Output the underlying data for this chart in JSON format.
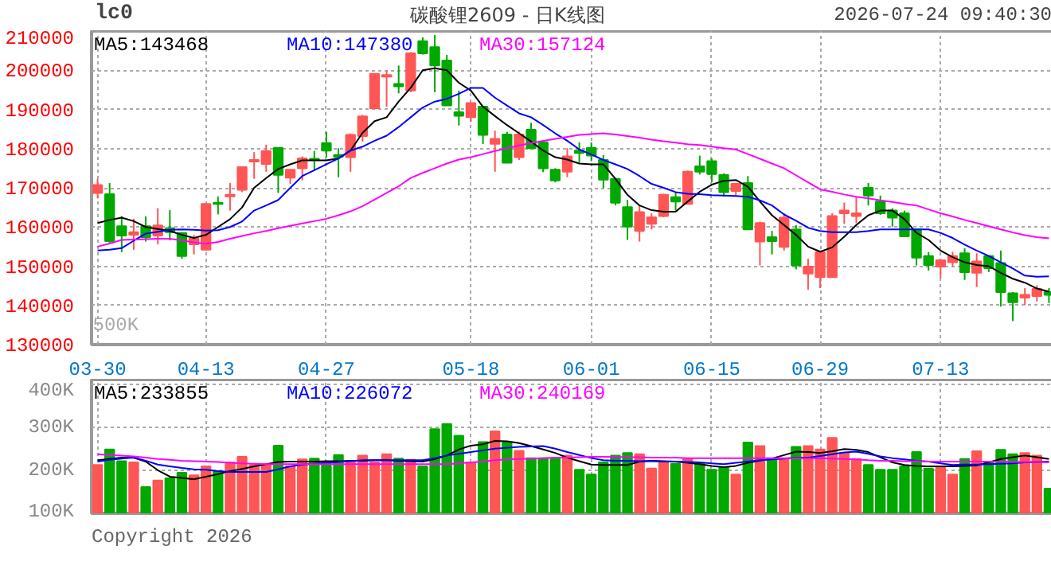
{
  "chart_data": [
    {
      "type": "candlestick",
      "title": "碳酸锂2609 - 日K线图",
      "subtitle": "lc0",
      "annotations": [
        "2026-07-24 09:40:30",
        "500K"
      ],
      "categories": [
        "03-30",
        null,
        null,
        null,
        null,
        null,
        null,
        null,
        null,
        "04-13",
        null,
        null,
        null,
        null,
        null,
        null,
        null,
        null,
        null,
        "04-27",
        null,
        null,
        null,
        null,
        null,
        null,
        null,
        null,
        null,
        null,
        null,
        "05-18",
        null,
        null,
        null,
        null,
        null,
        null,
        null,
        null,
        null,
        "06-01",
        null,
        null,
        null,
        null,
        null,
        null,
        null,
        null,
        null,
        "06-15",
        null,
        null,
        null,
        null,
        null,
        null,
        null,
        null,
        "06-29",
        null,
        null,
        null,
        null,
        null,
        null,
        null,
        null,
        null,
        "07-13",
        null,
        null,
        null,
        null,
        null,
        null,
        null,
        null,
        null
      ],
      "ohlc": [
        [
          168700,
          172300,
          167300,
          170700
        ],
        [
          168400,
          171200,
          156000,
          156400
        ],
        [
          160200,
          162800,
          153600,
          157800
        ],
        [
          158000,
          162100,
          154200,
          158700
        ],
        [
          160200,
          162700,
          156300,
          157400
        ],
        [
          157800,
          164800,
          155600,
          160400
        ],
        [
          159700,
          164300,
          156600,
          158700
        ],
        [
          158500,
          158700,
          151900,
          152600
        ],
        [
          155600,
          158000,
          153000,
          157100
        ],
        [
          154200,
          166000,
          154000,
          165900
        ],
        [
          166200,
          167800,
          163200,
          165900
        ],
        [
          167800,
          171200,
          164200,
          168200
        ],
        [
          169500,
          175400,
          168900,
          175300
        ],
        [
          176700,
          179100,
          172300,
          177100
        ],
        [
          176100,
          181000,
          174100,
          179400
        ],
        [
          180200,
          180300,
          168700,
          173300
        ],
        [
          172600,
          174700,
          171000,
          174600
        ],
        [
          175000,
          178000,
          171900,
          177500
        ],
        [
          177400,
          179400,
          174400,
          177100
        ],
        [
          181400,
          184300,
          177800,
          179500
        ],
        [
          178400,
          180100,
          172700,
          177900
        ],
        [
          177800,
          183900,
          174100,
          183500
        ],
        [
          183200,
          188600,
          181800,
          188200
        ],
        [
          190300,
          199200,
          190000,
          199100
        ],
        [
          198400,
          199900,
          190700,
          198800
        ],
        [
          196500,
          201200,
          194100,
          195900
        ],
        [
          194800,
          204600,
          194400,
          204300
        ],
        [
          207400,
          208400,
          204000,
          204300
        ],
        [
          205900,
          209000,
          194400,
          201200
        ],
        [
          202500,
          203900,
          191000,
          191000
        ],
        [
          189300,
          194800,
          185900,
          188400
        ],
        [
          188000,
          191700,
          186900,
          191600
        ],
        [
          190700,
          190800,
          181200,
          183500
        ],
        [
          181200,
          184600,
          174100,
          182500
        ],
        [
          183600,
          184300,
          176300,
          176400
        ],
        [
          177800,
          184300,
          177100,
          183600
        ],
        [
          184800,
          186600,
          179800,
          180100
        ],
        [
          181600,
          181800,
          174000,
          175000
        ],
        [
          174600,
          175000,
          171400,
          171900
        ],
        [
          174100,
          180100,
          172700,
          178000
        ],
        [
          179500,
          181600,
          176400,
          178900
        ],
        [
          180200,
          181600,
          176800,
          178200
        ],
        [
          177100,
          178400,
          170000,
          172100
        ],
        [
          172300,
          172400,
          165500,
          166200
        ],
        [
          165100,
          166900,
          156700,
          160100
        ],
        [
          159000,
          165500,
          156300,
          163800
        ],
        [
          160800,
          163500,
          159400,
          162500
        ],
        [
          162800,
          168500,
          162500,
          168200
        ],
        [
          167600,
          168900,
          164200,
          166500
        ],
        [
          165900,
          174400,
          165800,
          174100
        ],
        [
          175500,
          178200,
          173400,
          174100
        ],
        [
          176800,
          177500,
          171400,
          173500
        ],
        [
          173300,
          173700,
          167800,
          168900
        ],
        [
          169200,
          171200,
          167800,
          171000
        ],
        [
          171200,
          173000,
          159400,
          159400
        ],
        [
          156300,
          161400,
          150200,
          161000
        ],
        [
          157400,
          159000,
          153000,
          156400
        ],
        [
          154900,
          163500,
          154000,
          162400
        ],
        [
          159400,
          160500,
          149200,
          150200
        ],
        [
          148100,
          151900,
          144000,
          149900
        ],
        [
          147200,
          154000,
          144400,
          153600
        ],
        [
          147200,
          163500,
          147200,
          162800
        ],
        [
          163500,
          166200,
          160800,
          164200
        ],
        [
          162800,
          167600,
          161000,
          163500
        ],
        [
          170000,
          171200,
          165500,
          168000
        ],
        [
          166500,
          168000,
          163100,
          163500
        ],
        [
          164200,
          164800,
          160100,
          162400
        ],
        [
          163500,
          164200,
          157400,
          157600
        ],
        [
          159400,
          159500,
          150200,
          152200
        ],
        [
          152600,
          153600,
          148900,
          150300
        ],
        [
          149900,
          151600,
          146900,
          151500
        ],
        [
          151000,
          153700,
          149900,
          152600
        ],
        [
          153300,
          154600,
          146500,
          148500
        ],
        [
          148300,
          153300,
          144700,
          151200
        ],
        [
          152600,
          152700,
          148500,
          149500
        ],
        [
          150800,
          154000,
          139700,
          143400
        ],
        [
          143100,
          143400,
          136000,
          140800
        ],
        [
          142000,
          144400,
          140100,
          142700
        ],
        [
          142400,
          145100,
          141000,
          144200
        ],
        [
          143400,
          144400,
          140600,
          142700
        ]
      ],
      "colors": [
        "#ff5555",
        "#00a800",
        "#00a800",
        "#ff5555",
        "#00a800",
        "#ff5555",
        "#00a800",
        "#00a800",
        "#ff5555",
        "#ff5555",
        "#00a800",
        "#ff5555",
        "#ff5555",
        "#ff5555",
        "#ff5555",
        "#00a800",
        "#ff5555",
        "#ff5555",
        "#00a800",
        "#00a800",
        "#00a800",
        "#ff5555",
        "#ff5555",
        "#ff5555",
        "#ff5555",
        "#00a800",
        "#ff5555",
        "#00a800",
        "#00a800",
        "#00a800",
        "#00a800",
        "#ff5555",
        "#00a800",
        "#ff5555",
        "#00a800",
        "#ff5555",
        "#00a800",
        "#00a800",
        "#00a800",
        "#ff5555",
        "#00a800",
        "#00a800",
        "#00a800",
        "#00a800",
        "#00a800",
        "#ff5555",
        "#ff5555",
        "#ff5555",
        "#00a800",
        "#ff5555",
        "#00a800",
        "#00a800",
        "#00a800",
        "#ff5555",
        "#00a800",
        "#ff5555",
        "#00a800",
        "#ff5555",
        "#00a800",
        "#ff5555",
        "#ff5555",
        "#ff5555",
        "#ff5555",
        "#ff5555",
        "#00a800",
        "#00a800",
        "#00a800",
        "#00a800",
        "#00a800",
        "#00a800",
        "#ff5555",
        "#ff5555",
        "#00a800",
        "#ff5555",
        "#00a800",
        "#00a800",
        "#00a800",
        "#ff5555",
        "#ff5555",
        "#00a800"
      ],
      "series": [
        {
          "type": "line",
          "name": "MA5:143468",
          "color": "#000000",
          "values": [
            161000,
            161800,
            162400,
            161500,
            160000,
            159500,
            159000,
            158000,
            157200,
            158000,
            160000,
            162000,
            165000,
            170000,
            172500,
            174800,
            176000,
            177000,
            177000,
            177000,
            177500,
            179500,
            184000,
            187000,
            188000,
            192000,
            195500,
            200000,
            200500,
            200000,
            196800,
            194800,
            190700,
            188300,
            186000,
            183900,
            181800,
            179500,
            177800,
            177200,
            176200,
            176000,
            176000,
            172300,
            168200,
            165500,
            164300,
            163900,
            163900,
            166500,
            169000,
            170800,
            171800,
            172000,
            170300,
            166500,
            163000,
            160500,
            158000,
            155000,
            153700,
            154800,
            157500,
            160500,
            163000,
            164200,
            164200,
            162000,
            158500,
            156700,
            154000,
            152300,
            151000,
            150300,
            150000,
            148300,
            146800,
            145800,
            144300,
            143500
          ]
        },
        {
          "type": "line",
          "name": "MA10:147380",
          "color": "#0000ff",
          "values": [
            154000,
            154200,
            154600,
            156500,
            158300,
            158800,
            159300,
            159400,
            159300,
            159100,
            159200,
            160000,
            161400,
            164200,
            165500,
            166900,
            170000,
            173000,
            174500,
            176000,
            177500,
            179500,
            180500,
            182000,
            183300,
            185500,
            188000,
            190500,
            192000,
            192700,
            194000,
            195500,
            195500,
            193000,
            191000,
            189000,
            188000,
            186000,
            183900,
            182000,
            179800,
            178500,
            177100,
            176000,
            174800,
            173000,
            171000,
            170000,
            168900,
            168500,
            168400,
            168100,
            168000,
            167900,
            167700,
            166800,
            165500,
            163200,
            161600,
            159800,
            159000,
            158700,
            158700,
            158700,
            159000,
            159400,
            159400,
            159400,
            159400,
            159400,
            158500,
            157200,
            155500,
            154000,
            152600,
            151000,
            149400,
            147600,
            147300,
            147400
          ]
        },
        {
          "type": "line",
          "name": "MA30:157124",
          "color": "#ff00ff",
          "values": [
            155000,
            155800,
            156700,
            156800,
            156900,
            157000,
            157000,
            156600,
            156100,
            155700,
            156200,
            157000,
            157700,
            158400,
            159000,
            159700,
            160300,
            160900,
            161500,
            162100,
            163000,
            164000,
            165300,
            167000,
            168700,
            170400,
            172500,
            173800,
            175000,
            176200,
            177200,
            177800,
            178600,
            179400,
            180100,
            180800,
            181400,
            182000,
            182500,
            183000,
            183500,
            183700,
            183900,
            183600,
            183200,
            182800,
            182300,
            181900,
            181500,
            181100,
            180900,
            180500,
            180100,
            179800,
            178600,
            177400,
            176200,
            175000,
            173200,
            171400,
            169600,
            169000,
            168300,
            167700,
            167300,
            166800,
            166400,
            165900,
            165500,
            164500,
            163500,
            162700,
            161800,
            161000,
            160200,
            159400,
            158600,
            157900,
            157400,
            157100
          ]
        }
      ],
      "ylim": [
        130000,
        210000
      ],
      "yticks": [
        130000,
        140000,
        150000,
        160000,
        170000,
        180000,
        190000,
        200000,
        210000
      ],
      "grid": true,
      "legend": "top left"
    },
    {
      "type": "bar",
      "annotations": [
        "Copyright 2026"
      ],
      "tick_labels": "y",
      "categories": [
        null,
        null,
        null,
        null,
        null,
        null,
        null,
        null,
        null,
        null,
        null,
        null,
        null,
        null,
        null,
        null,
        null,
        null,
        null,
        null,
        null,
        null,
        null,
        null,
        null,
        null,
        null,
        null,
        null,
        null,
        null,
        null,
        null,
        null,
        null,
        null,
        null,
        null,
        null,
        null,
        null,
        null,
        null,
        null,
        null,
        null,
        null,
        null,
        null,
        null,
        null,
        null,
        null,
        null,
        null,
        null,
        null,
        null,
        null,
        null,
        null,
        null,
        null,
        null,
        null,
        null,
        null,
        null,
        null,
        null,
        null,
        null,
        null,
        null,
        null,
        null,
        null,
        null,
        null,
        null
      ],
      "values": [
        212000,
        248000,
        221000,
        218000,
        161000,
        176000,
        181000,
        194000,
        188000,
        209000,
        198000,
        218000,
        231000,
        212000,
        213000,
        257000,
        209000,
        225000,
        227000,
        218000,
        235000,
        220000,
        234000,
        218000,
        237000,
        227000,
        224000,
        209000,
        295000,
        307000,
        280000,
        218000,
        265000,
        290000,
        264000,
        245000,
        228000,
        228000,
        228000,
        234000,
        201000,
        190000,
        218000,
        234000,
        240000,
        237000,
        204000,
        220000,
        215000,
        226000,
        215000,
        201000,
        206000,
        190000,
        264000,
        256000,
        226000,
        225000,
        254000,
        256000,
        248000,
        275000,
        240000,
        226000,
        212000,
        201000,
        201000,
        209000,
        242000,
        204000,
        206000,
        190000,
        226000,
        244000,
        218000,
        247000,
        237000,
        240000,
        234000,
        157000
      ],
      "colors": [
        "#ff5555",
        "#00a800",
        "#00a800",
        "#ff5555",
        "#00a800",
        "#ff5555",
        "#00a800",
        "#00a800",
        "#ff5555",
        "#ff5555",
        "#00a800",
        "#ff5555",
        "#ff5555",
        "#ff5555",
        "#ff5555",
        "#00a800",
        "#ff5555",
        "#ff5555",
        "#00a800",
        "#00a800",
        "#00a800",
        "#ff5555",
        "#ff5555",
        "#ff5555",
        "#ff5555",
        "#00a800",
        "#ff5555",
        "#00a800",
        "#00a800",
        "#00a800",
        "#00a800",
        "#ff5555",
        "#00a800",
        "#ff5555",
        "#00a800",
        "#ff5555",
        "#00a800",
        "#00a800",
        "#00a800",
        "#ff5555",
        "#00a800",
        "#00a800",
        "#00a800",
        "#00a800",
        "#00a800",
        "#ff5555",
        "#ff5555",
        "#ff5555",
        "#00a800",
        "#ff5555",
        "#00a800",
        "#00a800",
        "#00a800",
        "#ff5555",
        "#00a800",
        "#ff5555",
        "#00a800",
        "#ff5555",
        "#00a800",
        "#ff5555",
        "#ff5555",
        "#ff5555",
        "#ff5555",
        "#ff5555",
        "#00a800",
        "#00a800",
        "#00a800",
        "#00a800",
        "#00a800",
        "#00a800",
        "#ff5555",
        "#ff5555",
        "#00a800",
        "#ff5555",
        "#00a800",
        "#00a800",
        "#00a800",
        "#ff5555",
        "#ff5555",
        "#00a800"
      ],
      "series": [
        {
          "type": "line",
          "name": "MA5:233855",
          "color": "#000000",
          "values": [
            223000,
            226000,
            229000,
            229000,
            220000,
            200000,
            185000,
            182000,
            179000,
            185000,
            191000,
            198000,
            203000,
            209000,
            214000,
            219000,
            220000,
            220000,
            220000,
            221000,
            221000,
            222000,
            222000,
            223000,
            223000,
            222000,
            221000,
            220000,
            226000,
            234000,
            248000,
            257000,
            260000,
            268000,
            267000,
            263000,
            256000,
            248000,
            240000,
            229000,
            221000,
            213000,
            212000,
            212000,
            212000,
            220000,
            222000,
            221000,
            220000,
            217000,
            214000,
            210000,
            207000,
            210000,
            217000,
            222000,
            227000,
            235000,
            243000,
            242000,
            240000,
            244000,
            249000,
            247000,
            242000,
            230000,
            218000,
            212000,
            210000,
            209000,
            209000,
            209000,
            210000,
            211000,
            218000,
            226000,
            230000,
            234000,
            230000,
            226000
          ]
        },
        {
          "type": "line",
          "name": "MA10:226072",
          "color": "#0000ff",
          "values": [
            220000,
            224000,
            227000,
            229000,
            222000,
            213000,
            209000,
            205000,
            202000,
            201000,
            198000,
            196000,
            196000,
            196000,
            196000,
            202000,
            209000,
            213000,
            215000,
            217000,
            219000,
            221000,
            223000,
            223000,
            223000,
            223000,
            223000,
            223000,
            228000,
            234000,
            238000,
            242000,
            246000,
            250000,
            252000,
            254000,
            255000,
            256000,
            250000,
            242000,
            235000,
            228000,
            223000,
            222000,
            222000,
            221000,
            221000,
            220000,
            220000,
            219000,
            218000,
            216000,
            214000,
            217000,
            220000,
            223000,
            225000,
            227000,
            229000,
            229000,
            233000,
            237000,
            241000,
            243000,
            238000,
            232000,
            228000,
            225000,
            222000,
            220000,
            216000,
            212000,
            213000,
            213000,
            214000,
            215000,
            216000,
            218000,
            219000,
            220000
          ]
        },
        {
          "type": "line",
          "name": "MA30:240169",
          "color": "#ff00ff",
          "values": [
            237000,
            235000,
            234000,
            232000,
            229000,
            226000,
            224000,
            222000,
            221000,
            220000,
            219000,
            217000,
            216000,
            215000,
            214000,
            214000,
            214000,
            214000,
            214000,
            214000,
            214000,
            214000,
            214000,
            214000,
            214000,
            214000,
            214000,
            214000,
            214000,
            214000,
            216000,
            218000,
            220000,
            223000,
            225000,
            226000,
            227000,
            228000,
            229000,
            229000,
            230000,
            231000,
            231000,
            231000,
            230000,
            230000,
            229000,
            229000,
            229000,
            228000,
            228000,
            228000,
            228000,
            228000,
            228000,
            228000,
            228000,
            228000,
            228000,
            228000,
            228000,
            227000,
            226000,
            225000,
            223000,
            222000,
            222000,
            221000,
            221000,
            220000,
            220000,
            220000,
            220000,
            220000,
            220000,
            220000,
            219000,
            219000,
            219000,
            218000
          ]
        }
      ],
      "ylim": [
        100000,
        410000
      ],
      "yticks": [
        {
          "value": 100000,
          "label": "100K"
        },
        {
          "value": 200000,
          "label": "200K"
        },
        {
          "value": 300000,
          "label": "300K"
        },
        {
          "value": 400000,
          "label": "400K"
        }
      ],
      "grid": true,
      "legend": "top left"
    }
  ]
}
